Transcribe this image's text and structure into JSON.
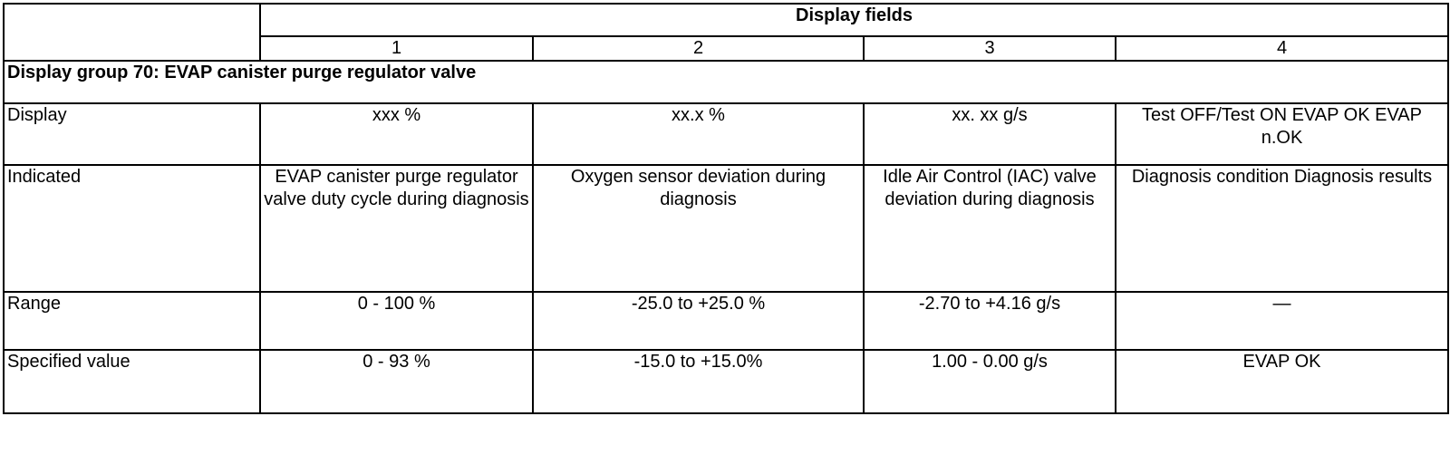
{
  "table": {
    "header": {
      "group_label": "Display fields",
      "fields": [
        "1",
        "2",
        "3",
        "4"
      ]
    },
    "section_title": "Display group 70: EVAP canister purge regulator valve",
    "rows": [
      {
        "label": "Display",
        "cells": [
          "xxx %",
          "xx.x %",
          "xx. xx g/s",
          "Test OFF/Test ON EVAP OK EVAP n.OK"
        ]
      },
      {
        "label": "Indicated",
        "cells": [
          "EVAP canister purge regulator valve duty cycle during diagnosis",
          "Oxygen sensor deviation during diagnosis",
          "Idle Air Control (IAC) valve deviation during diagnosis",
          "Diagnosis condition Diagnosis results"
        ]
      },
      {
        "label": "Range",
        "cells": [
          "0 - 100 %",
          "-25.0 to +25.0 %",
          "-2.70 to +4.16 g/s",
          "—"
        ]
      },
      {
        "label": "Specified value",
        "cells": [
          "0 - 93 %",
          "-15.0 to +15.0%",
          "1.00 - 0.00 g/s",
          "EVAP OK"
        ]
      }
    ]
  }
}
